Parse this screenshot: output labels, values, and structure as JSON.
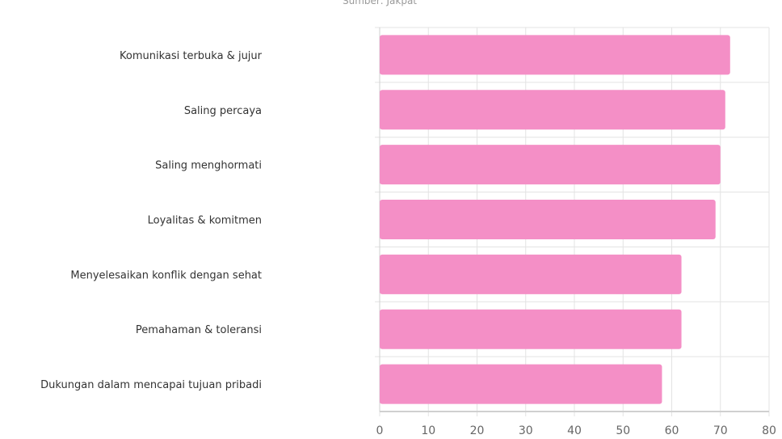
{
  "chart_data": {
    "type": "bar",
    "orientation": "horizontal",
    "source": "Sumber: Jakpat",
    "categories": [
      "Komunikasi terbuka & jujur",
      "Saling percaya",
      "Saling menghormati",
      "Loyalitas & komitmen",
      "Menyelesaikan konflik dengan sehat",
      "Pemahaman & toleransi",
      "Dukungan dalam mencapai tujuan pribadi"
    ],
    "values": [
      72,
      71,
      70,
      69,
      62,
      62,
      58
    ],
    "xlim": [
      0,
      80
    ],
    "xticks": [
      "0",
      "10",
      "20",
      "30",
      "40",
      "50",
      "60",
      "70",
      "80"
    ],
    "grid": true,
    "bar_color": "#f48fc6"
  }
}
